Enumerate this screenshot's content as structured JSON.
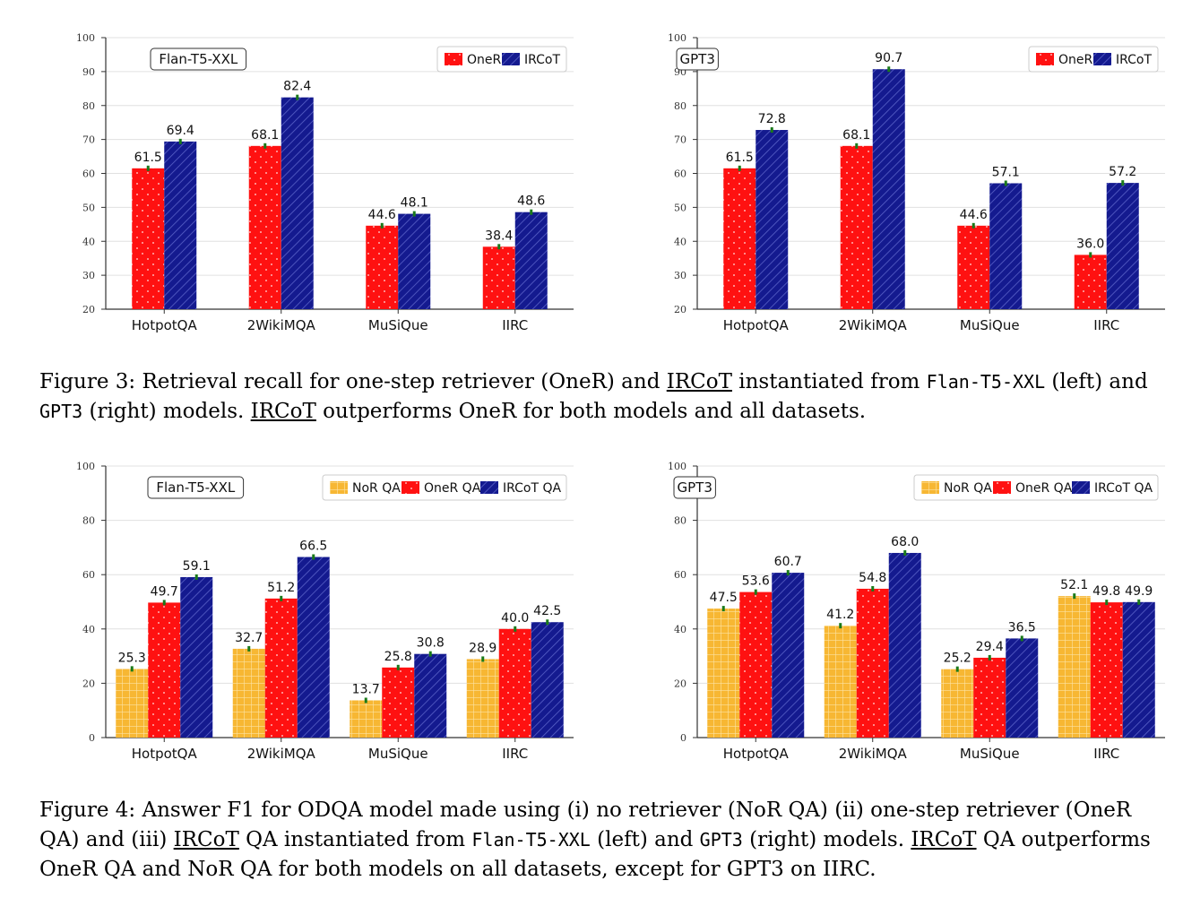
{
  "colors": {
    "NoR QA": "#f7b733",
    "OneR": "#ff1111",
    "IRCoT": "#141a8f",
    "error": "#1a7a1a"
  },
  "chart_data": [
    {
      "type": "bar",
      "model_label": "Flan-T5-XXL",
      "categories": [
        "HotpotQA",
        "2WikiMQA",
        "MuSiQue",
        "IIRC"
      ],
      "ylim": [
        20,
        100
      ],
      "yticks": [
        "20",
        "30",
        "40",
        "50",
        "60",
        "70",
        "80",
        "90",
        "100"
      ],
      "legend_position": "top-right",
      "series": [
        {
          "name": "OneR",
          "style": "OneR",
          "values": [
            61.5,
            68.1,
            44.6,
            38.4
          ],
          "labels": [
            "61.5",
            "68.1",
            "44.6",
            "38.4"
          ]
        },
        {
          "name": "IRCoT",
          "style": "IRCoT",
          "values": [
            69.4,
            82.4,
            48.1,
            48.6
          ],
          "labels": [
            "69.4",
            "82.4",
            "48.1",
            "48.6"
          ]
        }
      ]
    },
    {
      "type": "bar",
      "model_label": "GPT3",
      "categories": [
        "HotpotQA",
        "2WikiMQA",
        "MuSiQue",
        "IIRC"
      ],
      "ylim": [
        20,
        100
      ],
      "yticks": [
        "20",
        "30",
        "40",
        "50",
        "60",
        "70",
        "80",
        "90",
        "100"
      ],
      "legend_position": "top-right",
      "series": [
        {
          "name": "OneR",
          "style": "OneR",
          "values": [
            61.5,
            68.1,
            44.6,
            36.0
          ],
          "labels": [
            "61.5",
            "68.1",
            "44.6",
            "36.0"
          ]
        },
        {
          "name": "IRCoT",
          "style": "IRCoT",
          "values": [
            72.8,
            90.7,
            57.1,
            57.2
          ],
          "labels": [
            "72.8",
            "90.7",
            "57.1",
            "57.2"
          ]
        }
      ]
    },
    {
      "type": "bar",
      "model_label": "Flan-T5-XXL",
      "categories": [
        "HotpotQA",
        "2WikiMQA",
        "MuSiQue",
        "IIRC"
      ],
      "ylim": [
        0,
        100
      ],
      "yticks": [
        "0",
        "20",
        "40",
        "60",
        "80",
        "100"
      ],
      "legend_position": "top-right",
      "series": [
        {
          "name": "NoR QA",
          "style": "NoR QA",
          "values": [
            25.3,
            32.7,
            13.7,
            28.9
          ],
          "labels": [
            "25.3",
            "32.7",
            "13.7",
            "28.9"
          ]
        },
        {
          "name": "OneR QA",
          "style": "OneR",
          "values": [
            49.7,
            51.2,
            25.8,
            40.0
          ],
          "labels": [
            "49.7",
            "51.2",
            "25.8",
            "40.0"
          ]
        },
        {
          "name": "IRCoT QA",
          "style": "IRCoT",
          "values": [
            59.1,
            66.5,
            30.8,
            42.5
          ],
          "labels": [
            "59.1",
            "66.5",
            "30.8",
            "42.5"
          ]
        }
      ]
    },
    {
      "type": "bar",
      "model_label": "GPT3",
      "categories": [
        "HotpotQA",
        "2WikiMQA",
        "MuSiQue",
        "IIRC"
      ],
      "ylim": [
        0,
        100
      ],
      "yticks": [
        "0",
        "20",
        "40",
        "60",
        "80",
        "100"
      ],
      "legend_position": "top-right",
      "series": [
        {
          "name": "NoR QA",
          "style": "NoR QA",
          "values": [
            47.5,
            41.2,
            25.2,
            52.1
          ],
          "labels": [
            "47.5",
            "41.2",
            "25.2",
            "52.1"
          ]
        },
        {
          "name": "OneR QA",
          "style": "OneR",
          "values": [
            53.6,
            54.8,
            29.4,
            49.8
          ],
          "labels": [
            "53.6",
            "54.8",
            "29.4",
            "49.8"
          ]
        },
        {
          "name": "IRCoT QA",
          "style": "IRCoT",
          "values": [
            60.7,
            68.0,
            36.5,
            49.9
          ],
          "labels": [
            "60.7",
            "68.0",
            "36.5",
            "49.9"
          ]
        }
      ]
    }
  ],
  "captions": {
    "fig3": {
      "p1": "Figure 3: Retrieval recall for one-step retriever (OneR) and ",
      "ircot1": "IRCoT",
      "p2": " instantiated from ",
      "flan": "Flan-T5-XXL",
      "p3": " (left) and ",
      "gpt3": "GPT3",
      "p4": " (right) models. ",
      "ircot2": "IRCoT",
      "p5": " outperforms OneR for both models and all datasets."
    },
    "fig4": {
      "p1": "Figure 4: Answer F1 for ODQA model made using (i) no retriever (NoR QA) (ii) one-step retriever (OneR QA) and (iii) ",
      "ircot1": "IRCoT",
      "p2": " QA instantiated from ",
      "flan": "Flan-T5-XXL",
      "p3": " (left) and ",
      "gpt3": "GPT3",
      "p4": " (right) models. ",
      "ircot2": "IRCoT",
      "p5": " QA outperforms OneR QA and NoR QA for both models on all datasets, except for GPT3 on IIRC."
    }
  }
}
